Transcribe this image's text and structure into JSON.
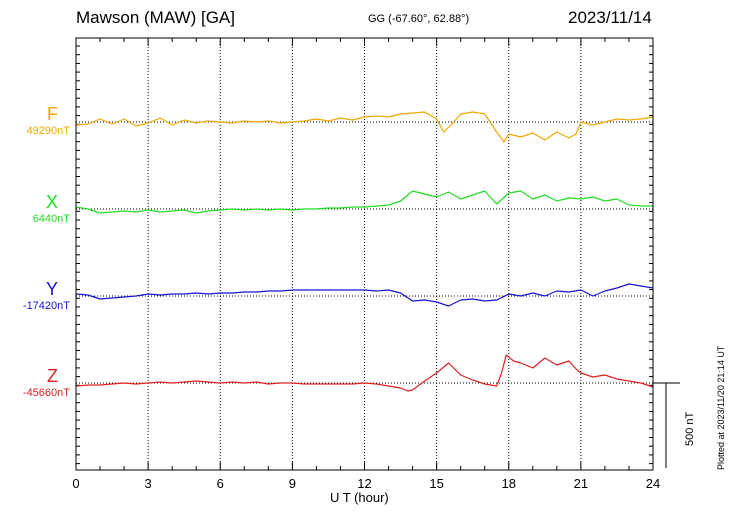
{
  "header": {
    "title": "Mawson (MAW)  [GA]",
    "coords": "GG (-67.60°,  62.88°)",
    "date": "2023/11/14"
  },
  "plotted_note": "Plotted at 2023/11/20 21:14 UT",
  "scale_label": "500 nT",
  "chart_data": {
    "type": "line",
    "xlabel": "U T (hour)",
    "x_ticks": [
      "0",
      "3",
      "6",
      "9",
      "12",
      "15",
      "18",
      "21",
      "24"
    ],
    "xlim": [
      0,
      24
    ],
    "scale_bar_nT": 500,
    "series": [
      {
        "name": "F",
        "baseline": "49290nT",
        "color": "#f0a800",
        "points": [
          [
            0,
            -3
          ],
          [
            0.5,
            -2
          ],
          [
            1,
            3
          ],
          [
            1.5,
            -2
          ],
          [
            2,
            3
          ],
          [
            2.5,
            -4
          ],
          [
            3,
            -1
          ],
          [
            3.5,
            4
          ],
          [
            4,
            -3
          ],
          [
            4.5,
            2
          ],
          [
            5,
            -1
          ],
          [
            5.5,
            1
          ],
          [
            6,
            0
          ],
          [
            6.5,
            -1
          ],
          [
            7,
            1
          ],
          [
            7.5,
            0
          ],
          [
            8,
            1
          ],
          [
            8.5,
            -1
          ],
          [
            9,
            0
          ],
          [
            9.5,
            1
          ],
          [
            10,
            3
          ],
          [
            10.5,
            1
          ],
          [
            11,
            4
          ],
          [
            11.5,
            2
          ],
          [
            12,
            5
          ],
          [
            12.5,
            6
          ],
          [
            13,
            5
          ],
          [
            13.5,
            8
          ],
          [
            14,
            9
          ],
          [
            14.5,
            10
          ],
          [
            15,
            3
          ],
          [
            15.3,
            -10
          ],
          [
            15.6,
            -3
          ],
          [
            16,
            8
          ],
          [
            16.5,
            10
          ],
          [
            17,
            8
          ],
          [
            17.5,
            -10
          ],
          [
            17.8,
            -20
          ],
          [
            18,
            -12
          ],
          [
            18.5,
            -15
          ],
          [
            19,
            -11
          ],
          [
            19.5,
            -18
          ],
          [
            20,
            -10
          ],
          [
            20.5,
            -16
          ],
          [
            20.8,
            -12
          ],
          [
            21,
            0
          ],
          [
            21.5,
            -3
          ],
          [
            22,
            0
          ],
          [
            22.5,
            3
          ],
          [
            23,
            2
          ],
          [
            23.5,
            3
          ],
          [
            24,
            5
          ]
        ]
      },
      {
        "name": "X",
        "baseline": "6440nT",
        "color": "#22dd22",
        "points": [
          [
            0,
            2
          ],
          [
            0.5,
            0
          ],
          [
            1,
            -4
          ],
          [
            1.5,
            -3
          ],
          [
            2,
            -2
          ],
          [
            2.5,
            -3
          ],
          [
            3,
            -1
          ],
          [
            3.5,
            -3
          ],
          [
            4,
            -2
          ],
          [
            4.5,
            -1
          ],
          [
            5,
            -4
          ],
          [
            5.5,
            -2
          ],
          [
            6,
            -1
          ],
          [
            6.5,
            0
          ],
          [
            7,
            -1
          ],
          [
            7.5,
            0
          ],
          [
            8,
            -1
          ],
          [
            8.5,
            0
          ],
          [
            9,
            -1
          ],
          [
            9.5,
            0
          ],
          [
            10,
            0
          ],
          [
            10.5,
            1
          ],
          [
            11,
            1
          ],
          [
            11.5,
            2
          ],
          [
            12,
            2
          ],
          [
            12.5,
            3
          ],
          [
            13,
            4
          ],
          [
            13.5,
            8
          ],
          [
            14,
            18
          ],
          [
            14.5,
            15
          ],
          [
            15,
            12
          ],
          [
            15.5,
            17
          ],
          [
            16,
            10
          ],
          [
            16.5,
            14
          ],
          [
            17,
            18
          ],
          [
            17.5,
            5
          ],
          [
            18,
            16
          ],
          [
            18.5,
            18
          ],
          [
            19,
            10
          ],
          [
            19.5,
            14
          ],
          [
            20,
            8
          ],
          [
            20.5,
            11
          ],
          [
            21,
            10
          ],
          [
            21.5,
            12
          ],
          [
            22,
            8
          ],
          [
            22.5,
            10
          ],
          [
            23,
            4
          ],
          [
            23.5,
            3
          ],
          [
            24,
            3
          ]
        ]
      },
      {
        "name": "Y",
        "baseline": "-17420nT",
        "color": "#1414d2",
        "points": [
          [
            0,
            2
          ],
          [
            0.5,
            1
          ],
          [
            1,
            -3
          ],
          [
            1.5,
            -2
          ],
          [
            2,
            -1
          ],
          [
            2.5,
            0
          ],
          [
            3,
            2
          ],
          [
            3.5,
            1
          ],
          [
            4,
            2
          ],
          [
            4.5,
            2
          ],
          [
            5,
            3
          ],
          [
            5.5,
            2
          ],
          [
            6,
            3
          ],
          [
            6.5,
            3
          ],
          [
            7,
            4
          ],
          [
            7.5,
            4
          ],
          [
            8,
            5
          ],
          [
            8.5,
            5
          ],
          [
            9,
            6
          ],
          [
            9.5,
            6
          ],
          [
            10,
            6
          ],
          [
            10.5,
            6
          ],
          [
            11,
            6
          ],
          [
            11.5,
            6
          ],
          [
            12,
            6
          ],
          [
            12.5,
            5
          ],
          [
            13,
            6
          ],
          [
            13.5,
            3
          ],
          [
            14,
            -5
          ],
          [
            14.5,
            -4
          ],
          [
            15,
            -6
          ],
          [
            15.5,
            -10
          ],
          [
            16,
            -4
          ],
          [
            16.5,
            -3
          ],
          [
            17,
            -5
          ],
          [
            17.5,
            -4
          ],
          [
            18,
            2
          ],
          [
            18.5,
            0
          ],
          [
            19,
            3
          ],
          [
            19.5,
            0
          ],
          [
            20,
            5
          ],
          [
            20.5,
            4
          ],
          [
            21,
            6
          ],
          [
            21.5,
            0
          ],
          [
            22,
            5
          ],
          [
            22.5,
            8
          ],
          [
            23,
            12
          ],
          [
            23.5,
            10
          ],
          [
            24,
            8
          ]
        ]
      },
      {
        "name": "Z",
        "baseline": "-45660nT",
        "color": "#e02020",
        "points": [
          [
            0,
            -3
          ],
          [
            0.5,
            -2
          ],
          [
            1,
            -2
          ],
          [
            1.5,
            -1
          ],
          [
            2,
            0
          ],
          [
            2.5,
            -1
          ],
          [
            3,
            0
          ],
          [
            3.5,
            1
          ],
          [
            4,
            0
          ],
          [
            4.5,
            1
          ],
          [
            5,
            2
          ],
          [
            5.5,
            1
          ],
          [
            6,
            0
          ],
          [
            6.5,
            1
          ],
          [
            7,
            0
          ],
          [
            7.5,
            1
          ],
          [
            8,
            -1
          ],
          [
            8.5,
            0
          ],
          [
            9,
            0
          ],
          [
            9.5,
            -1
          ],
          [
            10,
            -1
          ],
          [
            10.5,
            -1
          ],
          [
            11,
            -1
          ],
          [
            11.5,
            -1
          ],
          [
            12,
            0
          ],
          [
            12.5,
            -1
          ],
          [
            13,
            -3
          ],
          [
            13.5,
            -5
          ],
          [
            13.8,
            -8
          ],
          [
            14,
            -7
          ],
          [
            14.5,
            2
          ],
          [
            15,
            10
          ],
          [
            15.5,
            20
          ],
          [
            16,
            8
          ],
          [
            16.5,
            3
          ],
          [
            17,
            -1
          ],
          [
            17.5,
            -3
          ],
          [
            17.7,
            10
          ],
          [
            17.9,
            28
          ],
          [
            18.2,
            22
          ],
          [
            18.5,
            20
          ],
          [
            19,
            15
          ],
          [
            19.5,
            25
          ],
          [
            20,
            18
          ],
          [
            20.5,
            22
          ],
          [
            20.8,
            14
          ],
          [
            21,
            10
          ],
          [
            21.5,
            6
          ],
          [
            22,
            8
          ],
          [
            22.5,
            4
          ],
          [
            23,
            2
          ],
          [
            23.5,
            0
          ],
          [
            24,
            -4
          ]
        ]
      }
    ]
  }
}
